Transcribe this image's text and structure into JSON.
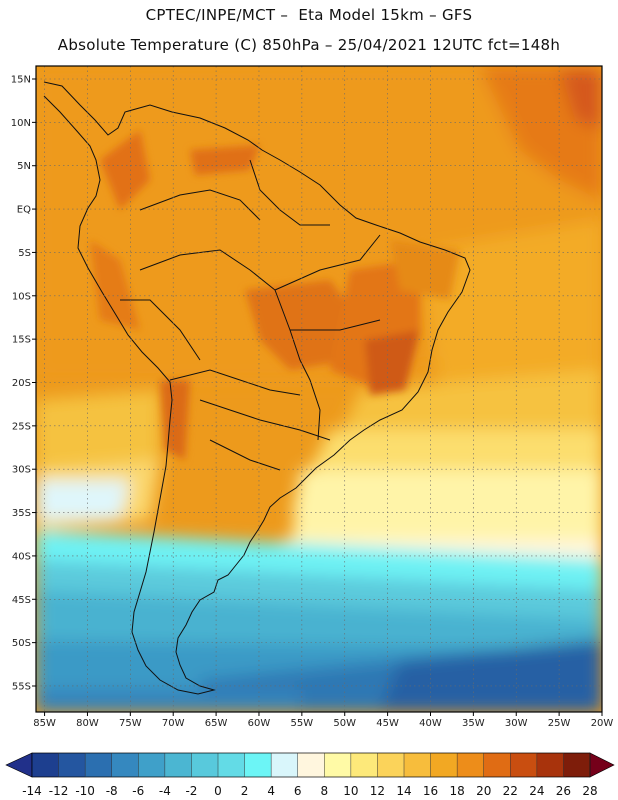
{
  "header": {
    "line1": "CPTEC/INPE/MCT –  Eta Model 15km – GFS",
    "line2": "Absolute Temperature (C) 850hPa – 25/04/2021 12UTC fct=148h"
  },
  "map": {
    "lat_labels": [
      "15N",
      "10N",
      "5N",
      "EQ",
      "5S",
      "10S",
      "15S",
      "20S",
      "25S",
      "30S",
      "35S",
      "40S",
      "45S",
      "50S",
      "55S"
    ],
    "lon_labels": [
      "85W",
      "80W",
      "75W",
      "70W",
      "65W",
      "60W",
      "55W",
      "50W",
      "45W",
      "40W",
      "35W",
      "30W",
      "25W",
      "20W"
    ],
    "lat_range": [
      -58,
      16.5
    ],
    "lon_range": [
      -86,
      -20
    ]
  },
  "colorbar": {
    "ticks": [
      "-14",
      "-12",
      "-10",
      "-8",
      "-6",
      "-4",
      "-2",
      "0",
      "2",
      "4",
      "6",
      "8",
      "10",
      "12",
      "14",
      "16",
      "18",
      "20",
      "22",
      "24",
      "26",
      "28"
    ],
    "colors": [
      "#1d3f8f",
      "#2456a0",
      "#2b6fb0",
      "#3588bf",
      "#3fa0c9",
      "#4bb6d2",
      "#58c9dc",
      "#63dbe6",
      "#6cf5f6",
      "#d9f6fb",
      "#fff6de",
      "#fffaa6",
      "#fde97a",
      "#fbd35a",
      "#f7bd3c",
      "#f2a823",
      "#ed8d1a",
      "#e06c14",
      "#c94e10",
      "#a8330c",
      "#7e1d0a"
    ],
    "under_color": "#21308a",
    "over_color": "#75001a"
  }
}
